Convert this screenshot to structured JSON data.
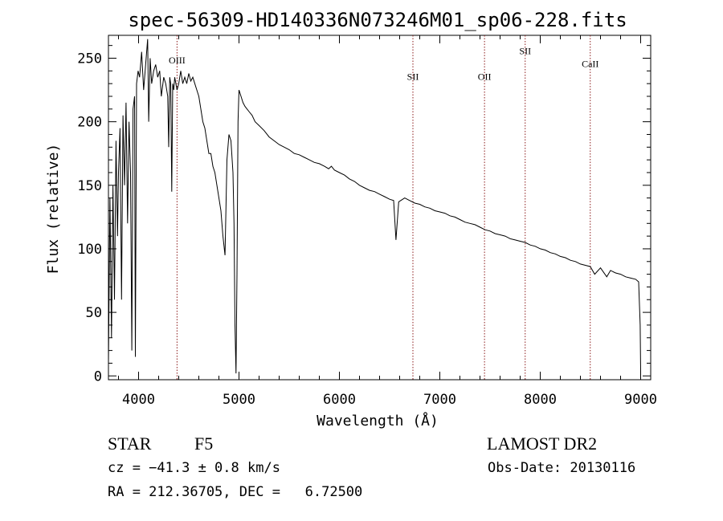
{
  "chart_data": {
    "type": "line",
    "title": "spec-56309-HD140336N073246M01_sp06-228.fits",
    "xlabel": "Wavelength (Å)",
    "ylabel": "Flux (relative)",
    "xlim": [
      3700,
      9100
    ],
    "ylim": [
      -3,
      268
    ],
    "x_ticks": [
      4000,
      5000,
      6000,
      7000,
      8000,
      9000
    ],
    "y_ticks": [
      0,
      50,
      100,
      150,
      200,
      250
    ],
    "grid": false,
    "line_color": "#000000",
    "marker_color": "#8b1a1a",
    "series": [
      {
        "x": [
          3700,
          3715,
          3730,
          3745,
          3760,
          3775,
          3790,
          3800,
          3815,
          3830,
          3845,
          3860,
          3875,
          3890,
          3905,
          3920,
          3933,
          3945,
          3960,
          3968,
          3980,
          3995,
          4010,
          4030,
          4050,
          4070,
          4090,
          4101,
          4115,
          4130,
          4150,
          4170,
          4190,
          4210,
          4226,
          4250,
          4270,
          4290,
          4300,
          4310,
          4320,
          4330,
          4340,
          4350,
          4360,
          4383,
          4400,
          4420,
          4440,
          4460,
          4480,
          4500,
          4520,
          4540,
          4560,
          4580,
          4600,
          4620,
          4640,
          4660,
          4680,
          4700,
          4720,
          4740,
          4760,
          4780,
          4800,
          4820,
          4840,
          4861,
          4880,
          4900,
          4920,
          4940,
          4950,
          4960,
          4970,
          4980,
          4990,
          5000,
          5020,
          5040,
          5060,
          5080,
          5100,
          5130,
          5160,
          5200,
          5250,
          5300,
          5350,
          5400,
          5450,
          5500,
          5550,
          5600,
          5650,
          5700,
          5750,
          5800,
          5850,
          5893,
          5920,
          5950,
          6000,
          6050,
          6100,
          6150,
          6200,
          6250,
          6300,
          6350,
          6400,
          6450,
          6500,
          6540,
          6563,
          6590,
          6650,
          6700,
          6750,
          6800,
          6850,
          6900,
          6950,
          7000,
          7050,
          7100,
          7150,
          7200,
          7250,
          7300,
          7350,
          7400,
          7450,
          7500,
          7550,
          7600,
          7650,
          7700,
          7750,
          7800,
          7850,
          7900,
          7950,
          8000,
          8050,
          8100,
          8150,
          8200,
          8250,
          8300,
          8350,
          8400,
          8450,
          8498,
          8542,
          8600,
          8662,
          8700,
          8750,
          8800,
          8850,
          8900,
          8950,
          8980,
          8995,
          9000
        ],
        "y": [
          10,
          140,
          30,
          150,
          60,
          185,
          110,
          160,
          195,
          60,
          205,
          150,
          215,
          120,
          200,
          160,
          20,
          210,
          220,
          15,
          230,
          240,
          235,
          255,
          225,
          245,
          265,
          200,
          250,
          230,
          240,
          245,
          235,
          240,
          220,
          235,
          230,
          220,
          180,
          235,
          230,
          145,
          230,
          225,
          235,
          225,
          230,
          240,
          230,
          235,
          230,
          238,
          232,
          235,
          230,
          225,
          220,
          210,
          200,
          195,
          185,
          175,
          175,
          165,
          160,
          150,
          140,
          130,
          110,
          95,
          170,
          190,
          185,
          160,
          120,
          40,
          2,
          80,
          200,
          225,
          220,
          215,
          212,
          210,
          208,
          205,
          200,
          197,
          193,
          188,
          185,
          182,
          180,
          178,
          175,
          174,
          172,
          170,
          168,
          167,
          165,
          163,
          165,
          162,
          160,
          158,
          155,
          153,
          150,
          148,
          146,
          145,
          143,
          141,
          139,
          138,
          107,
          137,
          140,
          138,
          136,
          135,
          133,
          132,
          130,
          129,
          128,
          126,
          125,
          123,
          121,
          120,
          119,
          117,
          115,
          114,
          112,
          111,
          110,
          108,
          107,
          106,
          105,
          103,
          102,
          100,
          99,
          97,
          96,
          94,
          93,
          91,
          90,
          88,
          87,
          86,
          80,
          85,
          78,
          83,
          81,
          80,
          78,
          77,
          76,
          74,
          40,
          3
        ]
      }
    ],
    "lines": [
      {
        "label": "OIII",
        "x": 4383,
        "label_y": 246
      },
      {
        "label": "SII",
        "x": 6732,
        "label_y": 233
      },
      {
        "label": "OII",
        "x": 7445,
        "label_y": 233
      },
      {
        "label": "SII",
        "x": 7850,
        "label_y": 253
      },
      {
        "label": "CaII",
        "x": 8498,
        "label_y": 243
      }
    ]
  },
  "footer": {
    "object_type": "STAR",
    "spectral_class": "F5",
    "cz": "cz = −41.3 ± 0.8 km/s",
    "coords": "RA = 212.36705, DEC =   6.72500",
    "survey": "LAMOST DR2",
    "obs_date": "Obs-Date: 20130116"
  }
}
